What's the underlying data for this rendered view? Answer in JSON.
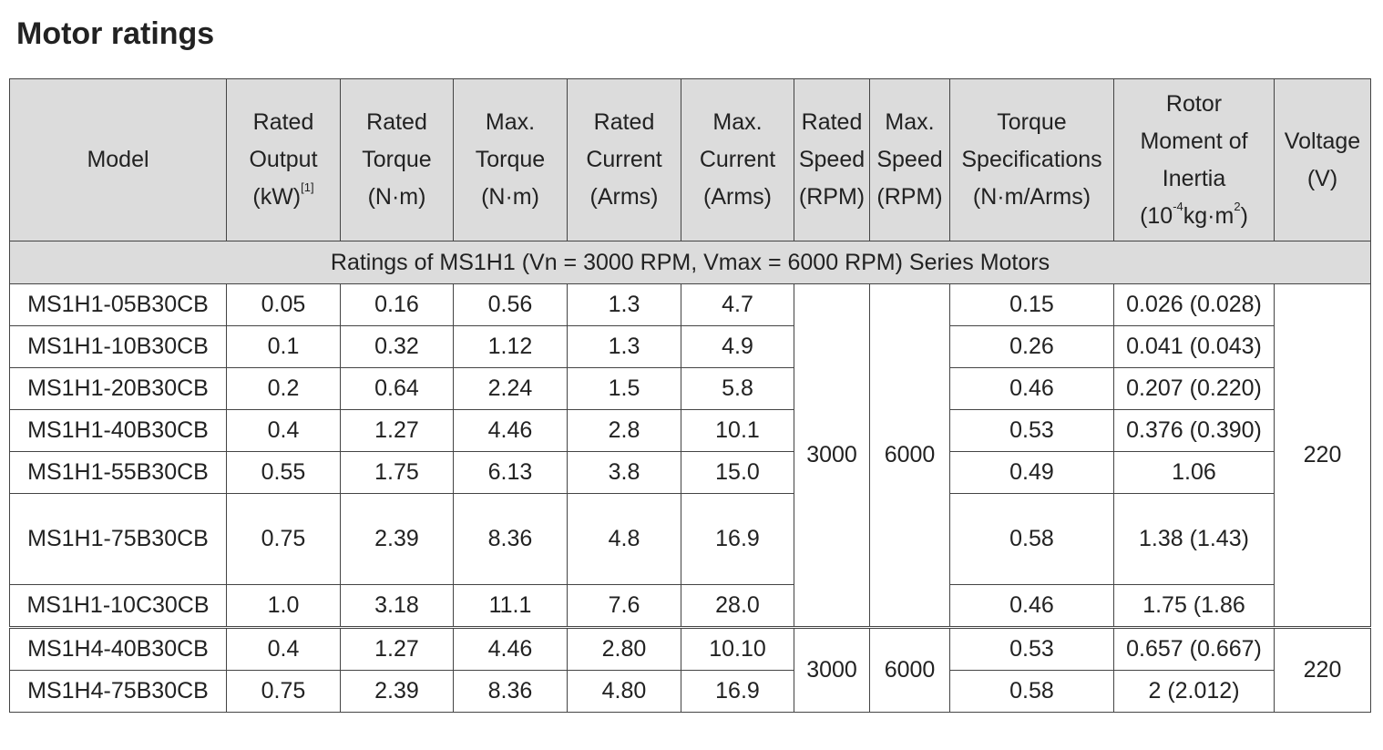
{
  "title": "Motor ratings",
  "table": {
    "header": [
      {
        "lines": [
          [
            {
              "text": "Model"
            }
          ]
        ]
      },
      {
        "lines": [
          [
            {
              "text": "Rated"
            }
          ],
          [
            {
              "text": "Output"
            }
          ],
          [
            {
              "text": "(kW)"
            },
            {
              "sup": "[1]"
            }
          ]
        ]
      },
      {
        "lines": [
          [
            {
              "text": "Rated"
            }
          ],
          [
            {
              "text": "Torque"
            }
          ],
          [
            {
              "text": "(N·m)"
            }
          ]
        ]
      },
      {
        "lines": [
          [
            {
              "text": "Max."
            }
          ],
          [
            {
              "text": "Torque"
            }
          ],
          [
            {
              "text": "(N·m)"
            }
          ]
        ]
      },
      {
        "lines": [
          [
            {
              "text": "Rated"
            }
          ],
          [
            {
              "text": "Current"
            }
          ],
          [
            {
              "text": "(Arms)"
            }
          ]
        ]
      },
      {
        "lines": [
          [
            {
              "text": "Max."
            }
          ],
          [
            {
              "text": "Current"
            }
          ],
          [
            {
              "text": "(Arms)"
            }
          ]
        ]
      },
      {
        "lines": [
          [
            {
              "text": "Rated"
            }
          ],
          [
            {
              "text": "Speed"
            }
          ],
          [
            {
              "text": "(RPM)"
            }
          ]
        ]
      },
      {
        "lines": [
          [
            {
              "text": "Max."
            }
          ],
          [
            {
              "text": "Speed"
            }
          ],
          [
            {
              "text": "(RPM)"
            }
          ]
        ]
      },
      {
        "lines": [
          [
            {
              "text": "Torque"
            }
          ],
          [
            {
              "text": "Specifications"
            }
          ],
          [
            {
              "text": "(N·m/Arms)"
            }
          ]
        ]
      },
      {
        "lines": [
          [
            {
              "text": "Rotor"
            }
          ],
          [
            {
              "text": "Moment of"
            }
          ],
          [
            {
              "text": "Inertia"
            }
          ],
          [
            {
              "text": "(10"
            },
            {
              "sup": "-4"
            },
            {
              "text": "kg·m"
            },
            {
              "sup": "2"
            },
            {
              "text": ")"
            }
          ]
        ]
      },
      {
        "lines": [
          [
            {
              "text": "Voltage"
            }
          ],
          [
            {
              "text": "(V)"
            }
          ]
        ]
      }
    ],
    "section": "Ratings of MS1H1 (Vn = 3000 RPM, Vmax = 6000 RPM) Series Motors",
    "groups": [
      {
        "rated_speed": "3000",
        "max_speed": "6000",
        "voltage": "220",
        "rows": [
          [
            "MS1H1-05B30CB",
            "0.05",
            "0.16",
            "0.56",
            "1.3",
            "4.7",
            "0.15",
            "0.026 (0.028)"
          ],
          [
            "MS1H1-10B30CB",
            "0.1",
            "0.32",
            "1.12",
            "1.3",
            "4.9",
            "0.26",
            "0.041 (0.043)"
          ],
          [
            "MS1H1-20B30CB",
            "0.2",
            "0.64",
            "2.24",
            "1.5",
            "5.8",
            "0.46",
            "0.207 (0.220)"
          ],
          [
            "MS1H1-40B30CB",
            "0.4",
            "1.27",
            "4.46",
            "2.8",
            "10.1",
            "0.53",
            "0.376 (0.390)"
          ],
          [
            "MS1H1-55B30CB",
            "0.55",
            "1.75",
            "6.13",
            "3.8",
            "15.0",
            "0.49",
            "1.06"
          ],
          [
            "MS1H1-75B30CB",
            "0.75",
            "2.39",
            "8.36",
            "4.8",
            "16.9",
            "0.58",
            "1.38 (1.43)"
          ],
          [
            "MS1H1-10C30CB",
            "1.0",
            "3.18",
            "11.1",
            "7.6",
            "28.0",
            "0.46",
            "1.75 (1.86"
          ]
        ]
      },
      {
        "rated_speed": "3000",
        "max_speed": "6000",
        "voltage": "220",
        "rows": [
          [
            "MS1H4-40B30CB",
            "0.4",
            "1.27",
            "4.46",
            "2.80",
            "10.10",
            "0.53",
            "0.657 (0.667)"
          ],
          [
            "MS1H4-75B30CB",
            "0.75",
            "2.39",
            "8.36",
            "4.80",
            "16.9",
            "0.58",
            "2 (2.012)"
          ]
        ]
      }
    ]
  }
}
